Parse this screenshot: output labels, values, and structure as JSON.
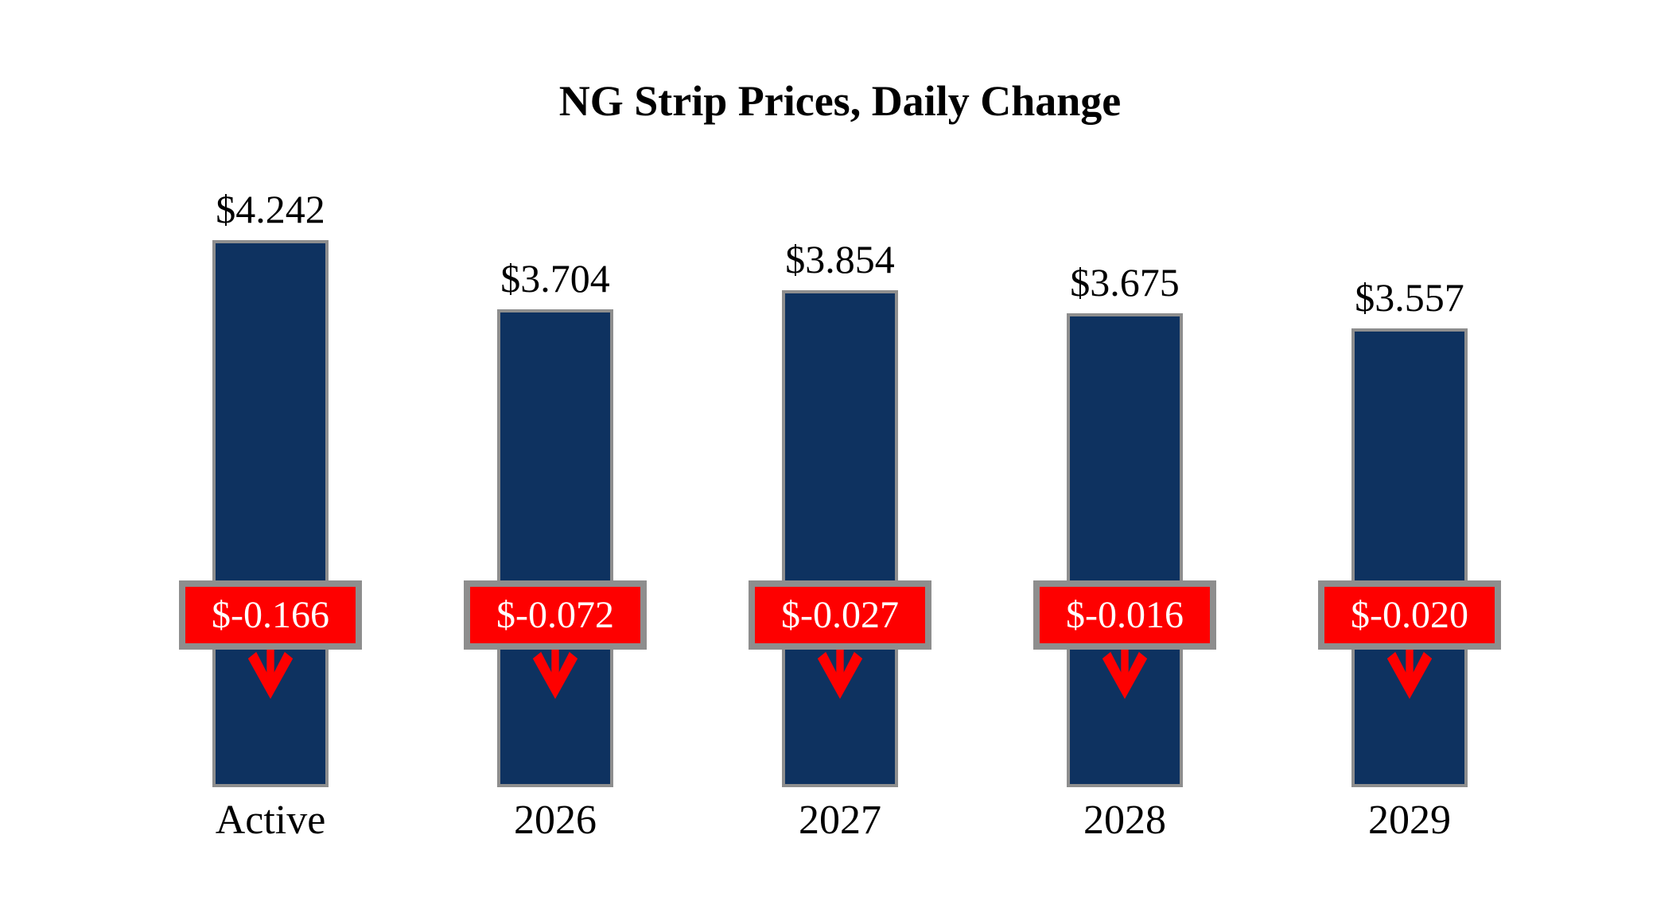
{
  "chart_data": {
    "type": "bar",
    "title": "NG Strip Prices, Daily Change",
    "categories": [
      "Active",
      "2026",
      "2027",
      "2028",
      "2029"
    ],
    "series": [
      {
        "name": "strip_price",
        "values": [
          4.242,
          3.704,
          3.854,
          3.675,
          3.557
        ]
      },
      {
        "name": "daily_change",
        "values": [
          -0.166,
          -0.072,
          -0.027,
          -0.016,
          -0.02
        ]
      }
    ],
    "value_labels": [
      "$4.242",
      "$3.704",
      "$3.854",
      "$3.675",
      "$3.557"
    ],
    "change_labels": [
      "$-0.166",
      "$-0.072",
      "$-0.027",
      "$-0.016",
      "$-0.020"
    ],
    "xlabel": "",
    "ylabel": "",
    "ylim": [
      0,
      4.4
    ],
    "grid": false,
    "legend": false,
    "annotations": "red change boxes with downward arrows overlaid on each bar",
    "colors": {
      "bar_fill": "#0e3260",
      "bar_border": "#8e8e8e",
      "badge_fill": "#fe0000",
      "badge_border": "#8e8e8e",
      "badge_text": "#ffffff",
      "arrow": "#fe0000",
      "title_text": "#000000",
      "label_text": "#000000",
      "background": "#ffffff"
    }
  }
}
